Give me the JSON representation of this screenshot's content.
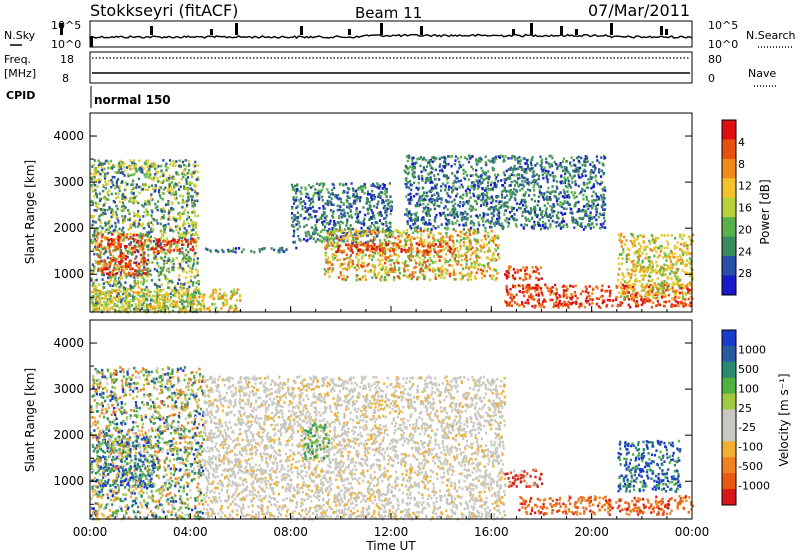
{
  "header": {
    "station": "Stokkseyri (fitACF)",
    "beam": "Beam 11",
    "date": "07/Mar/2011"
  },
  "status_panels": {
    "nsky_label": "N.Sky",
    "nsky_ticks": [
      "10^5",
      "10^0"
    ],
    "nsearch_label": "N.Search",
    "nsearch_ticks": [
      "10^5",
      "10^0"
    ],
    "freq_label": "Freq.",
    "freq_unit": "[MHz]",
    "freq_ticks": [
      "18",
      "8"
    ],
    "nave_label": "Nave",
    "nave_ticks": [
      "80",
      "0"
    ],
    "cpid_label": "CPID",
    "cpid_value": "normal 150"
  },
  "x_axis": {
    "label": "Time UT",
    "ticks": [
      "00:00",
      "04:00",
      "08:00",
      "12:00",
      "16:00",
      "20:00",
      "00:00"
    ]
  },
  "colors": {
    "power": [
      "#1a1acc",
      "#2a4fa8",
      "#3a8a60",
      "#5ab04a",
      "#b8d23a",
      "#f2c428",
      "#f08a18",
      "#e85010",
      "#dd1010"
    ],
    "velocity_positive": [
      "#1a3acc",
      "#2a5aa0",
      "#2a8a70",
      "#50b040",
      "#a0c840"
    ],
    "velocity_ground": "#c8c8c0",
    "velocity_negative": [
      "#f0b030",
      "#f08020",
      "#e85810",
      "#d81818"
    ]
  },
  "chart_data": [
    {
      "type": "heatmap",
      "title": "",
      "xlabel": "Time UT",
      "ylabel": "Slant Range [km]",
      "xlim": [
        0,
        24
      ],
      "ylim": [
        180,
        4500
      ],
      "y_ticks": [
        "1000",
        "2000",
        "3000",
        "4000"
      ],
      "colorbar": {
        "label": "Power [dB]",
        "ticks": [
          "4",
          "8",
          "12",
          "16",
          "20",
          "24",
          "28"
        ],
        "range": [
          0,
          30
        ]
      },
      "scatter_regions": [
        {
          "t": [
            0.0,
            4.3
          ],
          "r": [
            200,
            3500
          ],
          "level": "low-mid"
        },
        {
          "t": [
            0.2,
            2.2
          ],
          "r": [
            1000,
            1900
          ],
          "level": "high"
        },
        {
          "t": [
            2.3,
            4.2
          ],
          "r": [
            1500,
            1800
          ],
          "level": "high"
        },
        {
          "t": [
            0.0,
            6.0
          ],
          "r": [
            200,
            700
          ],
          "level": "mid"
        },
        {
          "t": [
            4.5,
            8.3
          ],
          "r": [
            1500,
            1600
          ],
          "level": "low"
        },
        {
          "t": [
            8.0,
            12.0
          ],
          "r": [
            1700,
            3000
          ],
          "level": "low"
        },
        {
          "t": [
            9.3,
            16.3
          ],
          "r": [
            900,
            2000
          ],
          "level": "mid-high"
        },
        {
          "t": [
            9.8,
            14.5
          ],
          "r": [
            1500,
            1700
          ],
          "level": "high"
        },
        {
          "t": [
            12.5,
            20.5
          ],
          "r": [
            2000,
            3600
          ],
          "level": "low"
        },
        {
          "t": [
            16.5,
            18.0
          ],
          "r": [
            900,
            1200
          ],
          "level": "high"
        },
        {
          "t": [
            16.5,
            24.0
          ],
          "r": [
            300,
            800
          ],
          "level": "high"
        },
        {
          "t": [
            21.0,
            24.0
          ],
          "r": [
            500,
            1900
          ],
          "level": "mid"
        }
      ]
    },
    {
      "type": "heatmap",
      "title": "",
      "xlabel": "Time UT",
      "ylabel": "Slant Range [km]",
      "xlim": [
        0,
        24
      ],
      "ylim": [
        180,
        4500
      ],
      "y_ticks": [
        "1000",
        "2000",
        "3000",
        "4000"
      ],
      "colorbar": {
        "label": "Velocity [m s⁻¹]",
        "ticks": [
          "1000",
          "500",
          "100",
          "25",
          "-25",
          "-100",
          "-500",
          "-1000"
        ],
        "range": [
          -1000,
          1000
        ]
      },
      "scatter_regions": [
        {
          "t": [
            0.2,
            2.5
          ],
          "r": [
            900,
            2000
          ],
          "velocity": "positive-high"
        },
        {
          "t": [
            0.0,
            4.5
          ],
          "r": [
            200,
            3500
          ],
          "velocity": "mixed"
        },
        {
          "t": [
            4.5,
            16.5
          ],
          "r": [
            200,
            3300
          ],
          "velocity": "ground"
        },
        {
          "t": [
            8.5,
            9.5
          ],
          "r": [
            1500,
            2300
          ],
          "velocity": "positive"
        },
        {
          "t": [
            16.5,
            18.0
          ],
          "r": [
            900,
            1300
          ],
          "velocity": "negative-high"
        },
        {
          "t": [
            17.0,
            24.0
          ],
          "r": [
            300,
            700
          ],
          "velocity": "negative"
        },
        {
          "t": [
            21.0,
            23.5
          ],
          "r": [
            800,
            1900
          ],
          "velocity": "positive-high"
        }
      ]
    }
  ]
}
